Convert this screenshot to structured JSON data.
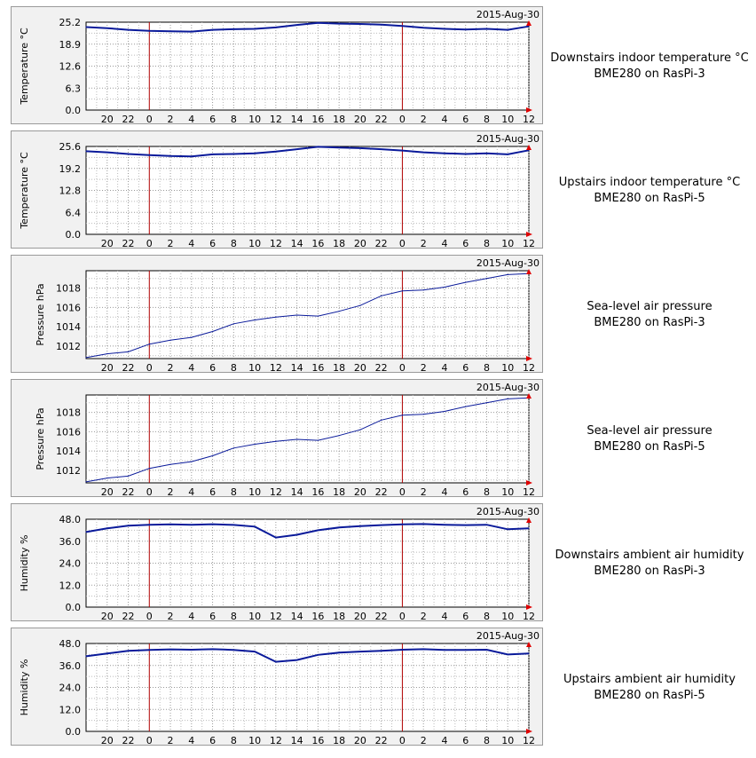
{
  "chart_data": [
    {
      "type": "line",
      "date": "2015-Aug-30",
      "ylabel": "Temperature °C",
      "yticks": [
        "0.0",
        "6.3",
        "12.6",
        "18.9",
        "25.2"
      ],
      "ylim": [
        0,
        25.2
      ],
      "xticks": [
        "20",
        "22",
        "0",
        "2",
        "4",
        "6",
        "8",
        "10",
        "12",
        "14",
        "16",
        "18",
        "20",
        "22",
        "0",
        "2",
        "4",
        "6",
        "8",
        "10",
        "12"
      ],
      "x": [
        18,
        20,
        22,
        24,
        26,
        28,
        30,
        32,
        34,
        36,
        38,
        40,
        42,
        44,
        46,
        48,
        50,
        52,
        54,
        56,
        58,
        60
      ],
      "series": [
        {
          "values": [
            23.8,
            23.5,
            23.0,
            22.7,
            22.6,
            22.5,
            23.0,
            23.2,
            23.3,
            23.7,
            24.4,
            25.0,
            24.8,
            24.7,
            24.5,
            24.1,
            23.6,
            23.3,
            23.1,
            23.3,
            23.0,
            24.0
          ]
        }
      ],
      "caption": [
        "Downstairs indoor temperature °C",
        "BME280 on RasPi-3"
      ]
    },
    {
      "type": "line",
      "date": "2015-Aug-30",
      "ylabel": "Temperature °C",
      "yticks": [
        "0.0",
        "6.4",
        "12.8",
        "19.2",
        "25.6"
      ],
      "ylim": [
        0,
        25.6
      ],
      "xticks": [
        "20",
        "22",
        "0",
        "2",
        "4",
        "6",
        "8",
        "10",
        "12",
        "14",
        "16",
        "18",
        "20",
        "22",
        "0",
        "2",
        "4",
        "6",
        "8",
        "10",
        "12"
      ],
      "x": [
        18,
        20,
        22,
        24,
        26,
        28,
        30,
        32,
        34,
        36,
        38,
        40,
        42,
        44,
        46,
        48,
        50,
        52,
        54,
        56,
        58,
        60
      ],
      "series": [
        {
          "values": [
            24.2,
            23.9,
            23.4,
            23.1,
            22.8,
            22.7,
            23.3,
            23.4,
            23.6,
            24.1,
            24.8,
            25.5,
            25.3,
            25.1,
            24.8,
            24.4,
            23.9,
            23.6,
            23.4,
            23.6,
            23.3,
            24.5
          ]
        }
      ],
      "caption": [
        "Upstairs indoor temperature °C",
        "BME280 on RasPi-5"
      ]
    },
    {
      "type": "line",
      "date": "2015-Aug-30",
      "ylabel": "Pressure hPa",
      "yticks": [
        "1012",
        "1014",
        "1016",
        "1018"
      ],
      "ylim": [
        1010.7,
        1019.8
      ],
      "xticks": [
        "20",
        "22",
        "0",
        "2",
        "4",
        "6",
        "8",
        "10",
        "12",
        "14",
        "16",
        "18",
        "20",
        "22",
        "0",
        "2",
        "4",
        "6",
        "8",
        "10",
        "12"
      ],
      "x": [
        18,
        20,
        22,
        24,
        26,
        28,
        30,
        32,
        34,
        36,
        38,
        40,
        42,
        44,
        46,
        48,
        50,
        52,
        54,
        56,
        58,
        60
      ],
      "series": [
        {
          "values": [
            1010.8,
            1011.2,
            1011.4,
            1012.2,
            1012.6,
            1012.9,
            1013.5,
            1014.3,
            1014.7,
            1015.0,
            1015.2,
            1015.1,
            1015.6,
            1016.2,
            1017.2,
            1017.7,
            1017.8,
            1018.1,
            1018.6,
            1019.0,
            1019.4,
            1019.5
          ]
        }
      ],
      "caption": [
        "Sea-level air pressure",
        "BME280 on RasPi-3"
      ]
    },
    {
      "type": "line",
      "date": "2015-Aug-30",
      "ylabel": "Pressure hPa",
      "yticks": [
        "1012",
        "1014",
        "1016",
        "1018"
      ],
      "ylim": [
        1010.7,
        1019.8
      ],
      "xticks": [
        "20",
        "22",
        "0",
        "2",
        "4",
        "6",
        "8",
        "10",
        "12",
        "14",
        "16",
        "18",
        "20",
        "22",
        "0",
        "2",
        "4",
        "6",
        "8",
        "10",
        "12"
      ],
      "x": [
        18,
        20,
        22,
        24,
        26,
        28,
        30,
        32,
        34,
        36,
        38,
        40,
        42,
        44,
        46,
        48,
        50,
        52,
        54,
        56,
        58,
        60
      ],
      "series": [
        {
          "values": [
            1010.8,
            1011.2,
            1011.4,
            1012.2,
            1012.6,
            1012.9,
            1013.5,
            1014.3,
            1014.7,
            1015.0,
            1015.2,
            1015.1,
            1015.6,
            1016.2,
            1017.2,
            1017.7,
            1017.8,
            1018.1,
            1018.6,
            1019.0,
            1019.4,
            1019.5
          ]
        }
      ],
      "caption": [
        "Sea-level air pressure",
        "BME280 on RasPi-5"
      ]
    },
    {
      "type": "line",
      "date": "2015-Aug-30",
      "ylabel": "Humidity %",
      "yticks": [
        "0.0",
        "12.0",
        "24.0",
        "36.0",
        "48.0"
      ],
      "ylim": [
        0,
        48
      ],
      "xticks": [
        "20",
        "22",
        "0",
        "2",
        "4",
        "6",
        "8",
        "10",
        "12",
        "14",
        "16",
        "18",
        "20",
        "22",
        "0",
        "2",
        "4",
        "6",
        "8",
        "10",
        "12"
      ],
      "x": [
        18,
        20,
        22,
        24,
        26,
        28,
        30,
        32,
        34,
        36,
        38,
        40,
        42,
        44,
        46,
        48,
        50,
        52,
        54,
        56,
        58,
        60
      ],
      "series": [
        {
          "values": [
            41.0,
            43.0,
            44.5,
            45.0,
            45.2,
            45.0,
            45.3,
            44.9,
            44.0,
            38.0,
            39.5,
            42.0,
            43.5,
            44.2,
            44.8,
            45.2,
            45.4,
            45.0,
            44.8,
            45.0,
            42.5,
            43.0
          ]
        }
      ],
      "caption": [
        "Downstairs ambient air humidity",
        "BME280 on RasPi-3"
      ]
    },
    {
      "type": "line",
      "date": "2015-Aug-30",
      "ylabel": "Humidity %",
      "yticks": [
        "0.0",
        "12.0",
        "24.0",
        "36.0",
        "48.0"
      ],
      "ylim": [
        0,
        48
      ],
      "xticks": [
        "20",
        "22",
        "0",
        "2",
        "4",
        "6",
        "8",
        "10",
        "12",
        "14",
        "16",
        "18",
        "20",
        "22",
        "0",
        "2",
        "4",
        "6",
        "8",
        "10",
        "12"
      ],
      "x": [
        18,
        20,
        22,
        24,
        26,
        28,
        30,
        32,
        34,
        36,
        38,
        40,
        42,
        44,
        46,
        48,
        50,
        52,
        54,
        56,
        58,
        60
      ],
      "series": [
        {
          "values": [
            41.0,
            42.5,
            44.0,
            44.5,
            44.8,
            44.6,
            44.9,
            44.5,
            43.6,
            38.0,
            39.0,
            41.8,
            43.0,
            43.6,
            44.0,
            44.6,
            44.9,
            44.5,
            44.5,
            44.6,
            42.0,
            42.5
          ]
        }
      ],
      "caption": [
        "Upstairs ambient air humidity",
        "BME280 on RasPi-5"
      ]
    }
  ]
}
